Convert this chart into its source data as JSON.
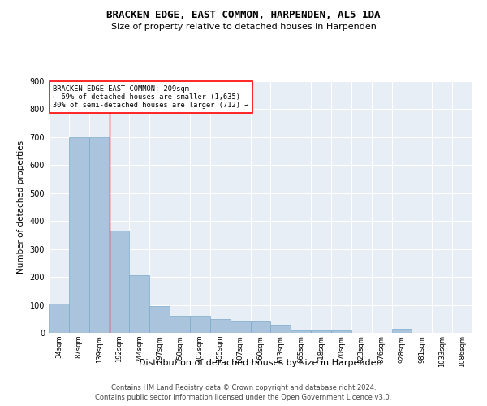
{
  "title1": "BRACKEN EDGE, EAST COMMON, HARPENDEN, AL5 1DA",
  "title2": "Size of property relative to detached houses in Harpenden",
  "xlabel": "Distribution of detached houses by size in Harpenden",
  "ylabel": "Number of detached properties",
  "categories": [
    "34sqm",
    "87sqm",
    "139sqm",
    "192sqm",
    "244sqm",
    "297sqm",
    "350sqm",
    "402sqm",
    "455sqm",
    "507sqm",
    "560sqm",
    "613sqm",
    "665sqm",
    "718sqm",
    "770sqm",
    "823sqm",
    "876sqm",
    "928sqm",
    "981sqm",
    "1033sqm",
    "1086sqm"
  ],
  "values": [
    105,
    700,
    700,
    365,
    205,
    95,
    60,
    60,
    50,
    45,
    45,
    30,
    10,
    10,
    10,
    0,
    0,
    15,
    0,
    0,
    0
  ],
  "bar_color": "#aac4de",
  "bar_edge_color": "#7aaac8",
  "annotation_text_line1": "BRACKEN EDGE EAST COMMON: 209sqm",
  "annotation_text_line2": "← 69% of detached houses are smaller (1,635)",
  "annotation_text_line3": "30% of semi-detached houses are larger (712) →",
  "vline_x": 2.5,
  "bg_color": "#e8eef5",
  "footer1": "Contains HM Land Registry data © Crown copyright and database right 2024.",
  "footer2": "Contains public sector information licensed under the Open Government Licence v3.0.",
  "ylim": [
    0,
    900
  ],
  "yticks": [
    0,
    100,
    200,
    300,
    400,
    500,
    600,
    700,
    800,
    900
  ]
}
